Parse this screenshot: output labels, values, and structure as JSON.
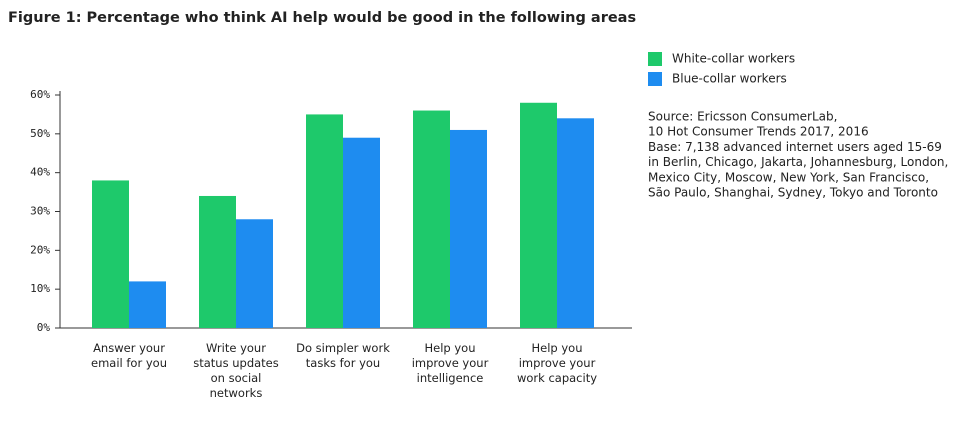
{
  "chart_data": {
    "type": "bar",
    "title": "Figure 1: Percentage who think AI help would be good in the following areas",
    "categories": [
      "Answer your email for you",
      "Write your status updates on social networks",
      "Do simpler work tasks for you",
      "Help you improve your intelligence",
      "Help you improve your work capacity"
    ],
    "series": [
      {
        "name": "White-collar workers",
        "color": "#1ec96b",
        "values": [
          38,
          34,
          55,
          56,
          58
        ]
      },
      {
        "name": "Blue-collar workers",
        "color": "#1e8cf0",
        "values": [
          12,
          28,
          49,
          51,
          54
        ]
      }
    ],
    "ylim": [
      0,
      60
    ],
    "yticks": [
      {
        "value": 0,
        "label": "0%"
      },
      {
        "value": 10,
        "label": "10%"
      },
      {
        "value": 20,
        "label": "20%"
      },
      {
        "value": 30,
        "label": "30%"
      },
      {
        "value": 40,
        "label": "40%"
      },
      {
        "value": 50,
        "label": "50%"
      },
      {
        "value": 60,
        "label": "60%"
      }
    ],
    "legend": "right",
    "source": [
      "Source: Ericsson ConsumerLab,",
      "10 Hot Consumer Trends 2017, 2016",
      "Base: 7,138 advanced internet users aged 15-69",
      "in Berlin, Chicago, Jakarta, Johannesburg, London,",
      "Mexico City, Moscow, New York, San Francisco,",
      "São Paulo, Shanghai, Sydney, Tokyo and Toronto"
    ]
  }
}
